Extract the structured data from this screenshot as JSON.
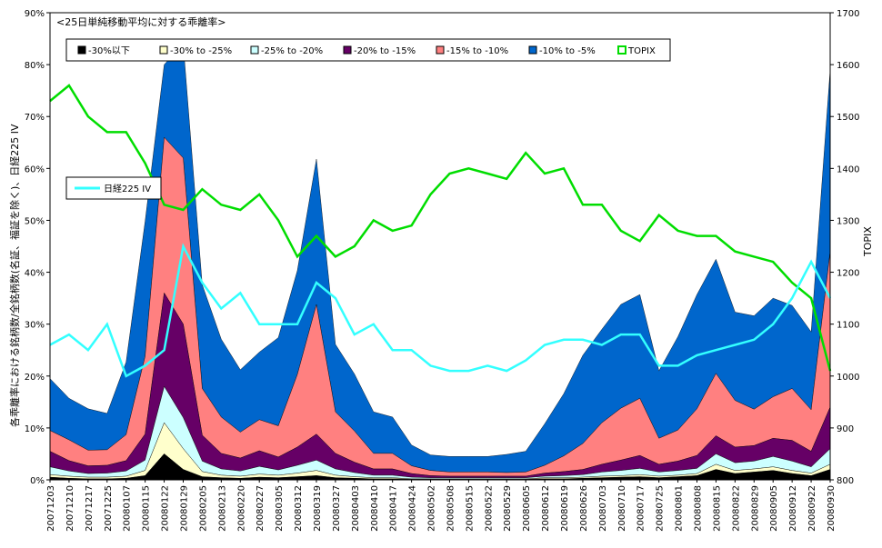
{
  "chart_data": {
    "type": "area",
    "title": "<25日単純移動平均に対する乖離率>",
    "ylabel_left": "各乖離率における銘柄数/全銘柄数(名証、福証を除く)、日経225 IV",
    "ylabel_right": "TOPIX",
    "ylim_left": [
      0,
      90
    ],
    "ylim_right": [
      800,
      1700
    ],
    "yticks_left": [
      "0%",
      "10%",
      "20%",
      "30%",
      "40%",
      "50%",
      "60%",
      "70%",
      "80%",
      "90%"
    ],
    "yticks_right": [
      "800",
      "900",
      "1000",
      "1100",
      "1200",
      "1300",
      "1400",
      "1500",
      "1600",
      "1700"
    ],
    "x_labels": [
      "20071203",
      "20071210",
      "20071217",
      "20071225",
      "20080107",
      "20080115",
      "20080122",
      "20080129",
      "20080205",
      "20080213",
      "20080220",
      "20080227",
      "20080305",
      "20080312",
      "20080319",
      "20080327",
      "20080403",
      "20080410",
      "20080417",
      "20080424",
      "20080502",
      "20080508",
      "20080515",
      "20080522",
      "20080529",
      "20080605",
      "20080612",
      "20080619",
      "20080626",
      "20080703",
      "20080710",
      "20080717",
      "20080725",
      "20080801",
      "20080808",
      "20080815",
      "20080822",
      "20080829",
      "20080905",
      "20080912",
      "20080922",
      "20080930"
    ],
    "series": [
      {
        "name": "-30%以下",
        "color": "#000000",
        "values": [
          0.5,
          0.3,
          0.2,
          0.2,
          0.3,
          0.8,
          5,
          2,
          0.6,
          0.4,
          0.3,
          0.5,
          0.4,
          0.6,
          0.8,
          0.4,
          0.3,
          0.2,
          0.2,
          0.1,
          0.1,
          0.1,
          0.1,
          0.1,
          0.1,
          0.1,
          0.2,
          0.2,
          0.3,
          0.4,
          0.5,
          0.6,
          0.4,
          0.6,
          0.8,
          2,
          1.2,
          1.5,
          1.8,
          1.2,
          0.8,
          2
        ]
      },
      {
        "name": "-30% to -25%",
        "color": "#ffffcc",
        "values": [
          0.5,
          0.4,
          0.3,
          0.3,
          0.4,
          1,
          6,
          4,
          1,
          0.5,
          0.4,
          0.6,
          0.5,
          0.7,
          1,
          0.5,
          0.3,
          0.2,
          0.2,
          0.1,
          0.1,
          0.1,
          0.1,
          0.1,
          0.1,
          0.1,
          0.2,
          0.2,
          0.2,
          0.3,
          0.3,
          0.4,
          0.3,
          0.3,
          0.4,
          1,
          0.6,
          0.6,
          0.7,
          0.6,
          0.5,
          1
        ]
      },
      {
        "name": "-25% to -20%",
        "color": "#ccffff",
        "values": [
          1.5,
          1,
          0.7,
          0.8,
          1,
          2,
          7,
          6,
          2,
          1.2,
          1,
          1.5,
          1,
          1.5,
          2,
          1.2,
          0.8,
          0.5,
          0.5,
          0.3,
          0.2,
          0.2,
          0.2,
          0.2,
          0.2,
          0.2,
          0.3,
          0.4,
          0.5,
          0.8,
          1,
          1.2,
          0.8,
          0.9,
          1,
          2,
          1.5,
          1.5,
          2,
          1.8,
          1.2,
          3
        ]
      },
      {
        "name": "-20% to -15%",
        "color": "#660066",
        "values": [
          3,
          2,
          1.5,
          1.5,
          2,
          5,
          18,
          18,
          5,
          3,
          2.5,
          3,
          2.5,
          3.5,
          5,
          3,
          2,
          1.2,
          1.2,
          0.7,
          0.4,
          0.3,
          0.3,
          0.3,
          0.3,
          0.3,
          0.6,
          0.8,
          1,
          1.5,
          2,
          2.5,
          1.5,
          1.8,
          2.5,
          3.5,
          3,
          3,
          3.5,
          4,
          3,
          8
        ]
      },
      {
        "name": "-15% to -10%",
        "color": "#ff8080",
        "values": [
          4,
          4,
          3,
          3,
          5,
          15,
          30,
          32,
          9,
          7,
          5,
          6,
          6,
          14,
          25,
          8,
          6,
          3,
          3,
          1.5,
          1,
          0.8,
          0.8,
          0.8,
          0.7,
          0.8,
          1.5,
          3,
          5,
          8,
          10,
          11,
          5,
          6,
          9,
          12,
          9,
          7,
          8,
          10,
          8,
          30
        ]
      },
      {
        "name": "-10% to -5%",
        "color": "#0066cc",
        "values": [
          10,
          8,
          8,
          7,
          14,
          26,
          14,
          22,
          20,
          15,
          12,
          13,
          17,
          20,
          28,
          13,
          11,
          8,
          7,
          4,
          3,
          3,
          3,
          3,
          3.5,
          4,
          8,
          12,
          17,
          18,
          20,
          20,
          13,
          18,
          22,
          22,
          17,
          18,
          19,
          16,
          15,
          35
        ]
      },
      {
        "name": "TOPIX",
        "color": "#00dd00",
        "axis": "right",
        "values": [
          1530,
          1560,
          1500,
          1470,
          1470,
          1410,
          1330,
          1320,
          1360,
          1330,
          1320,
          1350,
          1300,
          1230,
          1270,
          1230,
          1250,
          1300,
          1280,
          1290,
          1350,
          1390,
          1400,
          1390,
          1380,
          1430,
          1390,
          1400,
          1330,
          1330,
          1280,
          1260,
          1310,
          1280,
          1270,
          1270,
          1240,
          1230,
          1220,
          1180,
          1150,
          1010
        ]
      },
      {
        "name": "日経225 IV",
        "color": "#33ffff",
        "axis": "left",
        "values": [
          26,
          28,
          25,
          30,
          20,
          22,
          25,
          45,
          38,
          33,
          36,
          30,
          30,
          30,
          38,
          35,
          28,
          30,
          25,
          25,
          22,
          21,
          21,
          22,
          21,
          23,
          26,
          27,
          27,
          26,
          28,
          28,
          22,
          22,
          24,
          25,
          26,
          27,
          30,
          35,
          42,
          35
        ]
      }
    ],
    "legend_box": [
      "-30%以下",
      "-30% to -25%",
      "-25% to -20%",
      "-20% to -15%",
      "-15% to -10%",
      "-10% to -5%",
      "TOPIX"
    ],
    "legend_iv": "日経225 IV"
  }
}
